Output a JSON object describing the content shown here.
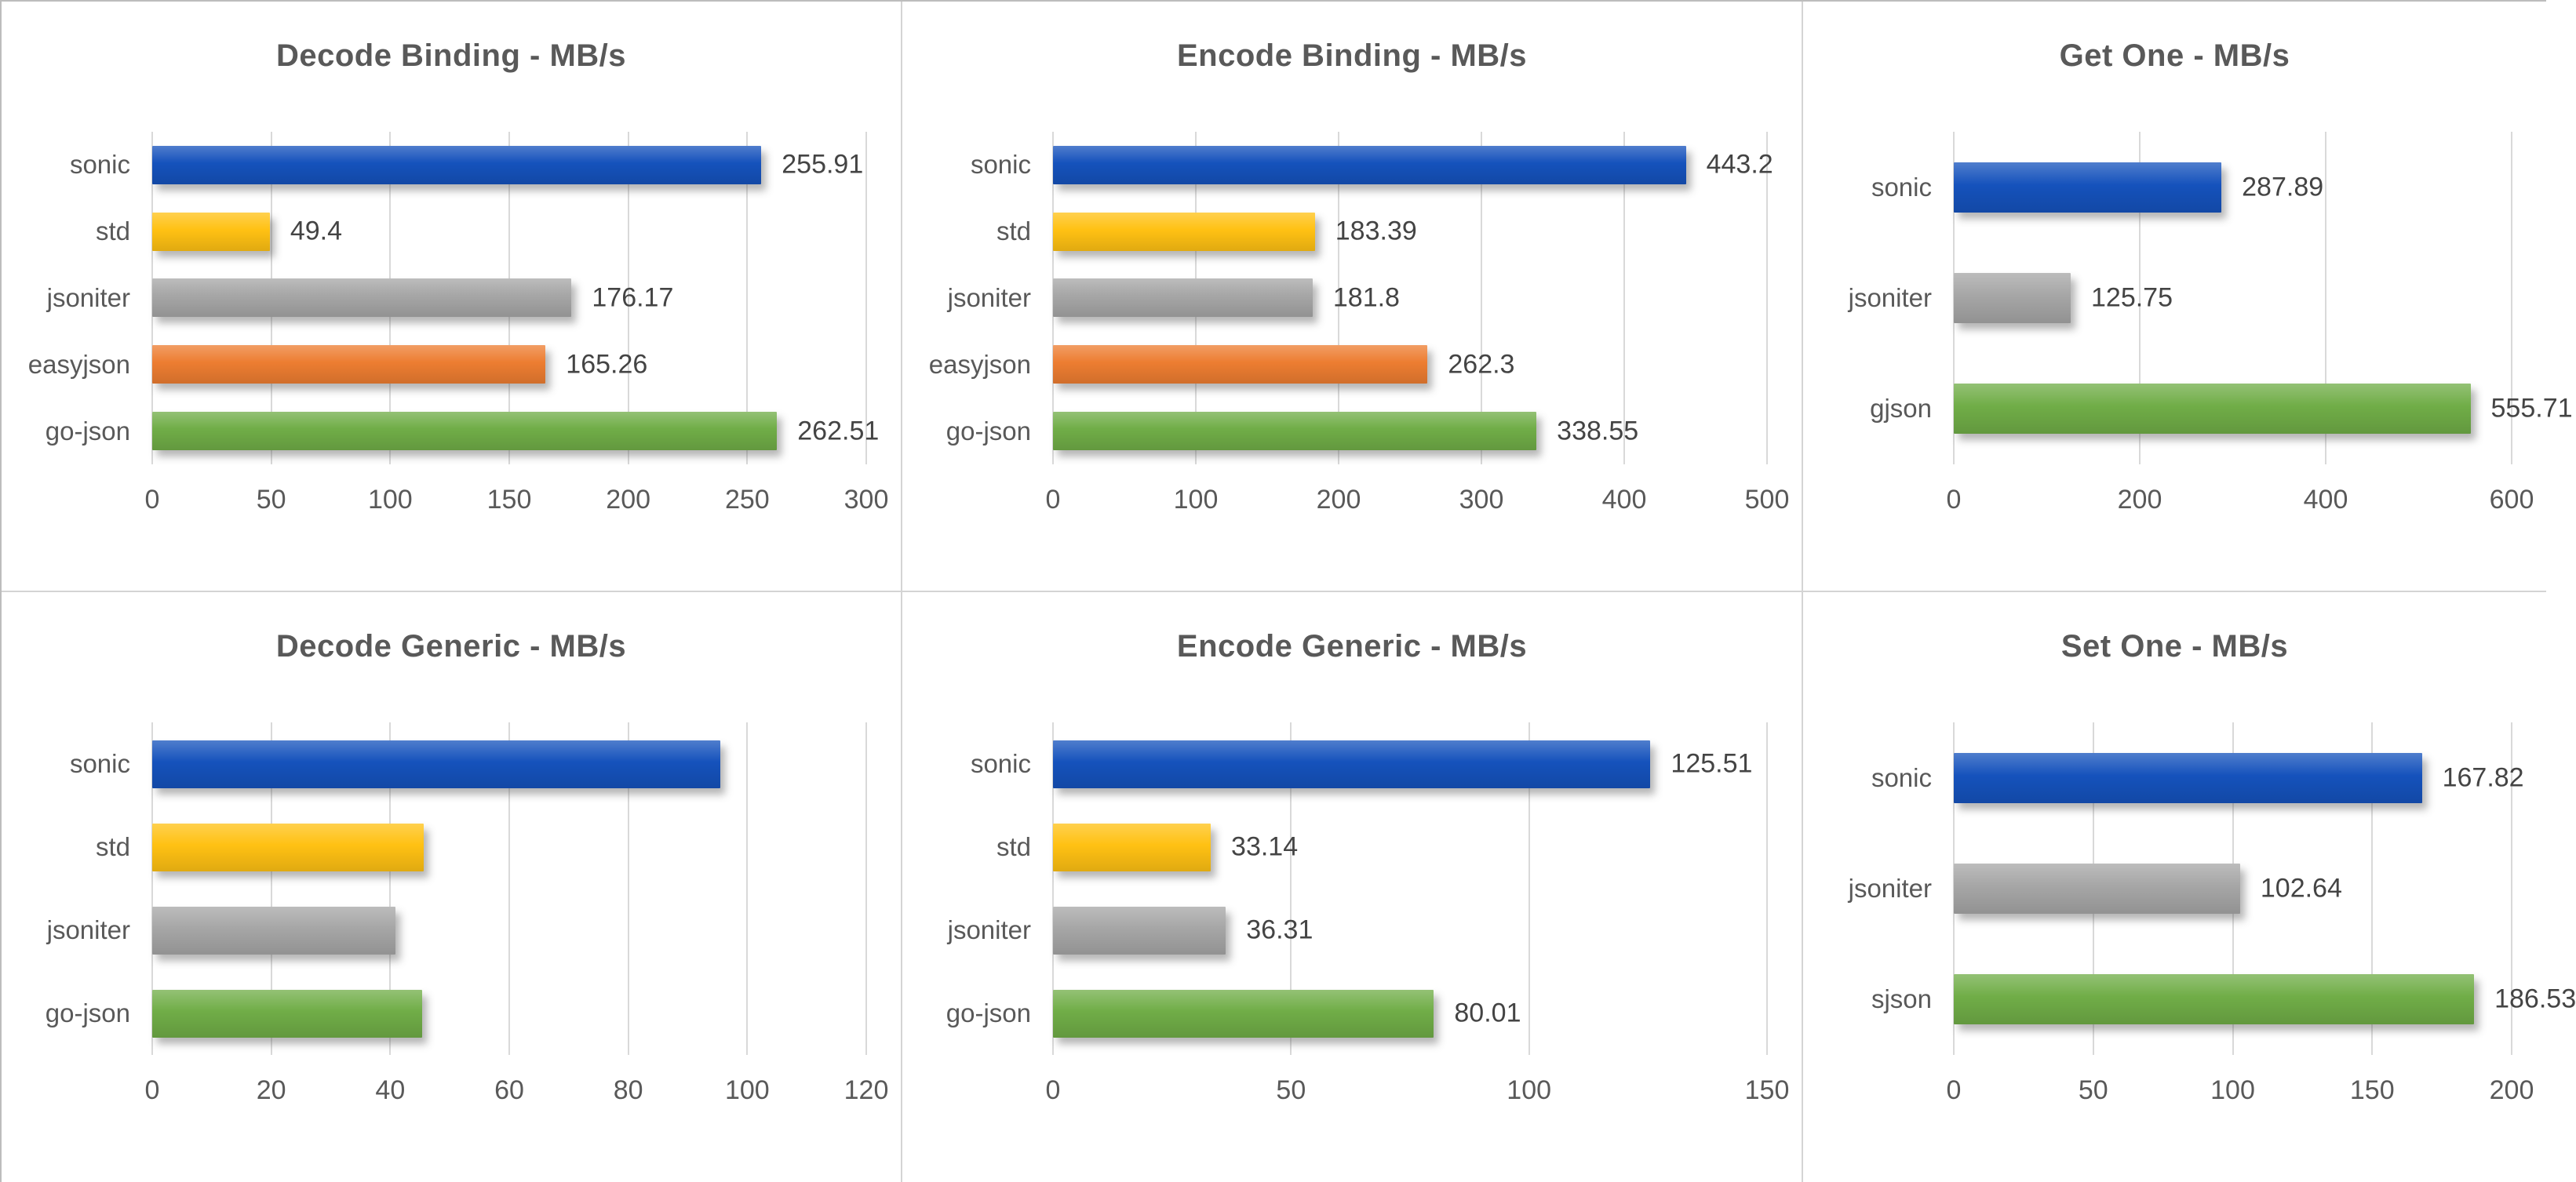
{
  "page": {
    "background": "#ffffff",
    "panel_border": "#d4d4d4",
    "outer_border": "#bdbdbd",
    "title_color": "#595959",
    "tick_color": "#595959",
    "value_label_color": "#444444",
    "grid_color": "#d9d9d9",
    "series_palette": {
      "sonic": "#1552bc",
      "std": "#ffc113",
      "jsoniter": "#a6a6a6",
      "easyjson": "#ed7d31",
      "go-json": "#70ad47",
      "gjson": "#70ad47",
      "sjson": "#70ad47"
    }
  },
  "chart_data": [
    {
      "type": "bar",
      "orientation": "horizontal",
      "title": "Decode Binding - MB/s",
      "categories": [
        "sonic",
        "std",
        "jsoniter",
        "easyjson",
        "go-json"
      ],
      "values": [
        255.91,
        49.4,
        176.17,
        165.26,
        262.51
      ],
      "value_labels": [
        "255.91",
        "49.4",
        "176.17",
        "165.26",
        "262.51"
      ],
      "colors": [
        "#1552bc",
        "#ffc113",
        "#a6a6a6",
        "#ed7d31",
        "#70ad47"
      ],
      "xlim": [
        0,
        300
      ],
      "ticks": [
        0,
        50,
        100,
        150,
        200,
        250,
        300
      ],
      "grid": true,
      "legend": "none"
    },
    {
      "type": "bar",
      "orientation": "horizontal",
      "title": "Encode Binding - MB/s",
      "categories": [
        "sonic",
        "std",
        "jsoniter",
        "easyjson",
        "go-json"
      ],
      "values": [
        443.2,
        183.39,
        181.8,
        262.3,
        338.55
      ],
      "value_labels": [
        "443.2",
        "183.39",
        "181.8",
        "262.3",
        "338.55"
      ],
      "colors": [
        "#1552bc",
        "#ffc113",
        "#a6a6a6",
        "#ed7d31",
        "#70ad47"
      ],
      "xlim": [
        0,
        500
      ],
      "ticks": [
        0,
        100,
        200,
        300,
        400,
        500
      ],
      "grid": true,
      "legend": "none"
    },
    {
      "type": "bar",
      "orientation": "horizontal",
      "title": "Get One - MB/s",
      "categories": [
        "sonic",
        "jsoniter",
        "gjson"
      ],
      "values": [
        287.89,
        125.75,
        555.71
      ],
      "value_labels": [
        "287.89",
        "125.75",
        "555.71"
      ],
      "colors": [
        "#1552bc",
        "#a6a6a6",
        "#70ad47"
      ],
      "xlim": [
        0,
        600
      ],
      "ticks": [
        0,
        200,
        400,
        600
      ],
      "grid": true,
      "legend": "none"
    },
    {
      "type": "bar",
      "orientation": "horizontal",
      "title": "Decode Generic - MB/s",
      "categories": [
        "sonic",
        "std",
        "jsoniter",
        "go-json"
      ],
      "values": [
        95.5,
        45.6,
        40.9,
        45.3
      ],
      "value_labels": [
        "",
        "",
        "",
        ""
      ],
      "colors": [
        "#1552bc",
        "#ffc113",
        "#a6a6a6",
        "#70ad47"
      ],
      "xlim": [
        0,
        120
      ],
      "ticks": [
        0,
        20,
        40,
        60,
        80,
        100,
        120
      ],
      "grid": true,
      "legend": "none"
    },
    {
      "type": "bar",
      "orientation": "horizontal",
      "title": "Encode Generic - MB/s",
      "categories": [
        "sonic",
        "std",
        "jsoniter",
        "go-json"
      ],
      "values": [
        125.51,
        33.14,
        36.31,
        80.01
      ],
      "value_labels": [
        "125.51",
        "33.14",
        "36.31",
        "80.01"
      ],
      "colors": [
        "#1552bc",
        "#ffc113",
        "#a6a6a6",
        "#70ad47"
      ],
      "xlim": [
        0,
        150
      ],
      "ticks": [
        0,
        50,
        100,
        150
      ],
      "grid": true,
      "legend": "none"
    },
    {
      "type": "bar",
      "orientation": "horizontal",
      "title": "Set One - MB/s",
      "categories": [
        "sonic",
        "jsoniter",
        "sjson"
      ],
      "values": [
        167.82,
        102.64,
        186.53
      ],
      "value_labels": [
        "167.82",
        "102.64",
        "186.53"
      ],
      "colors": [
        "#1552bc",
        "#a6a6a6",
        "#70ad47"
      ],
      "xlim": [
        0,
        200
      ],
      "ticks": [
        0,
        50,
        100,
        150,
        200
      ],
      "grid": true,
      "legend": "none"
    }
  ]
}
